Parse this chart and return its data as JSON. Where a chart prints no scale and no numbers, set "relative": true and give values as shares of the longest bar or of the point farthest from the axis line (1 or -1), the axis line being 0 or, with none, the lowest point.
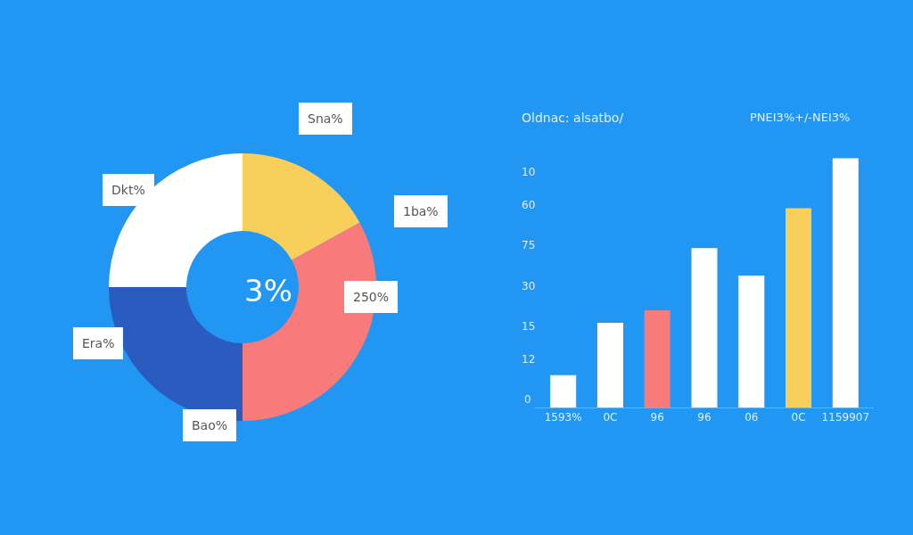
{
  "chart_data": [
    {
      "type": "donut",
      "categories": [
        null,
        null,
        null,
        null
      ],
      "values": [
        17,
        33,
        25,
        25
      ],
      "colors": [
        "#f9cf5b",
        "#f97a7a",
        "#2a5bbf",
        "#ffffff"
      ],
      "annotations": [
        "Sna%",
        "1ba%",
        "250%",
        "Bao%",
        "Era%",
        "Dkt%",
        "3%"
      ]
    },
    {
      "type": "bar",
      "title": "Oldnac: alsatbo/",
      "categories": [
        "1593%",
        "0C",
        "96",
        "96",
        "06",
        "0C",
        "1159907"
      ],
      "values": [
        0.13,
        0.34,
        0.39,
        0.64,
        0.53,
        0.8,
        1
      ],
      "relative": true,
      "colors": [
        "#ffffff",
        "#ffffff",
        "#f97a7a",
        "#ffffff",
        "#ffffff",
        "#f9cf5b",
        "#ffffff"
      ],
      "annotations": [
        "PNEI3%",
        "+/-NEI3%",
        "0",
        "12",
        "15",
        "30",
        "75",
        "60",
        "10"
      ]
    }
  ]
}
